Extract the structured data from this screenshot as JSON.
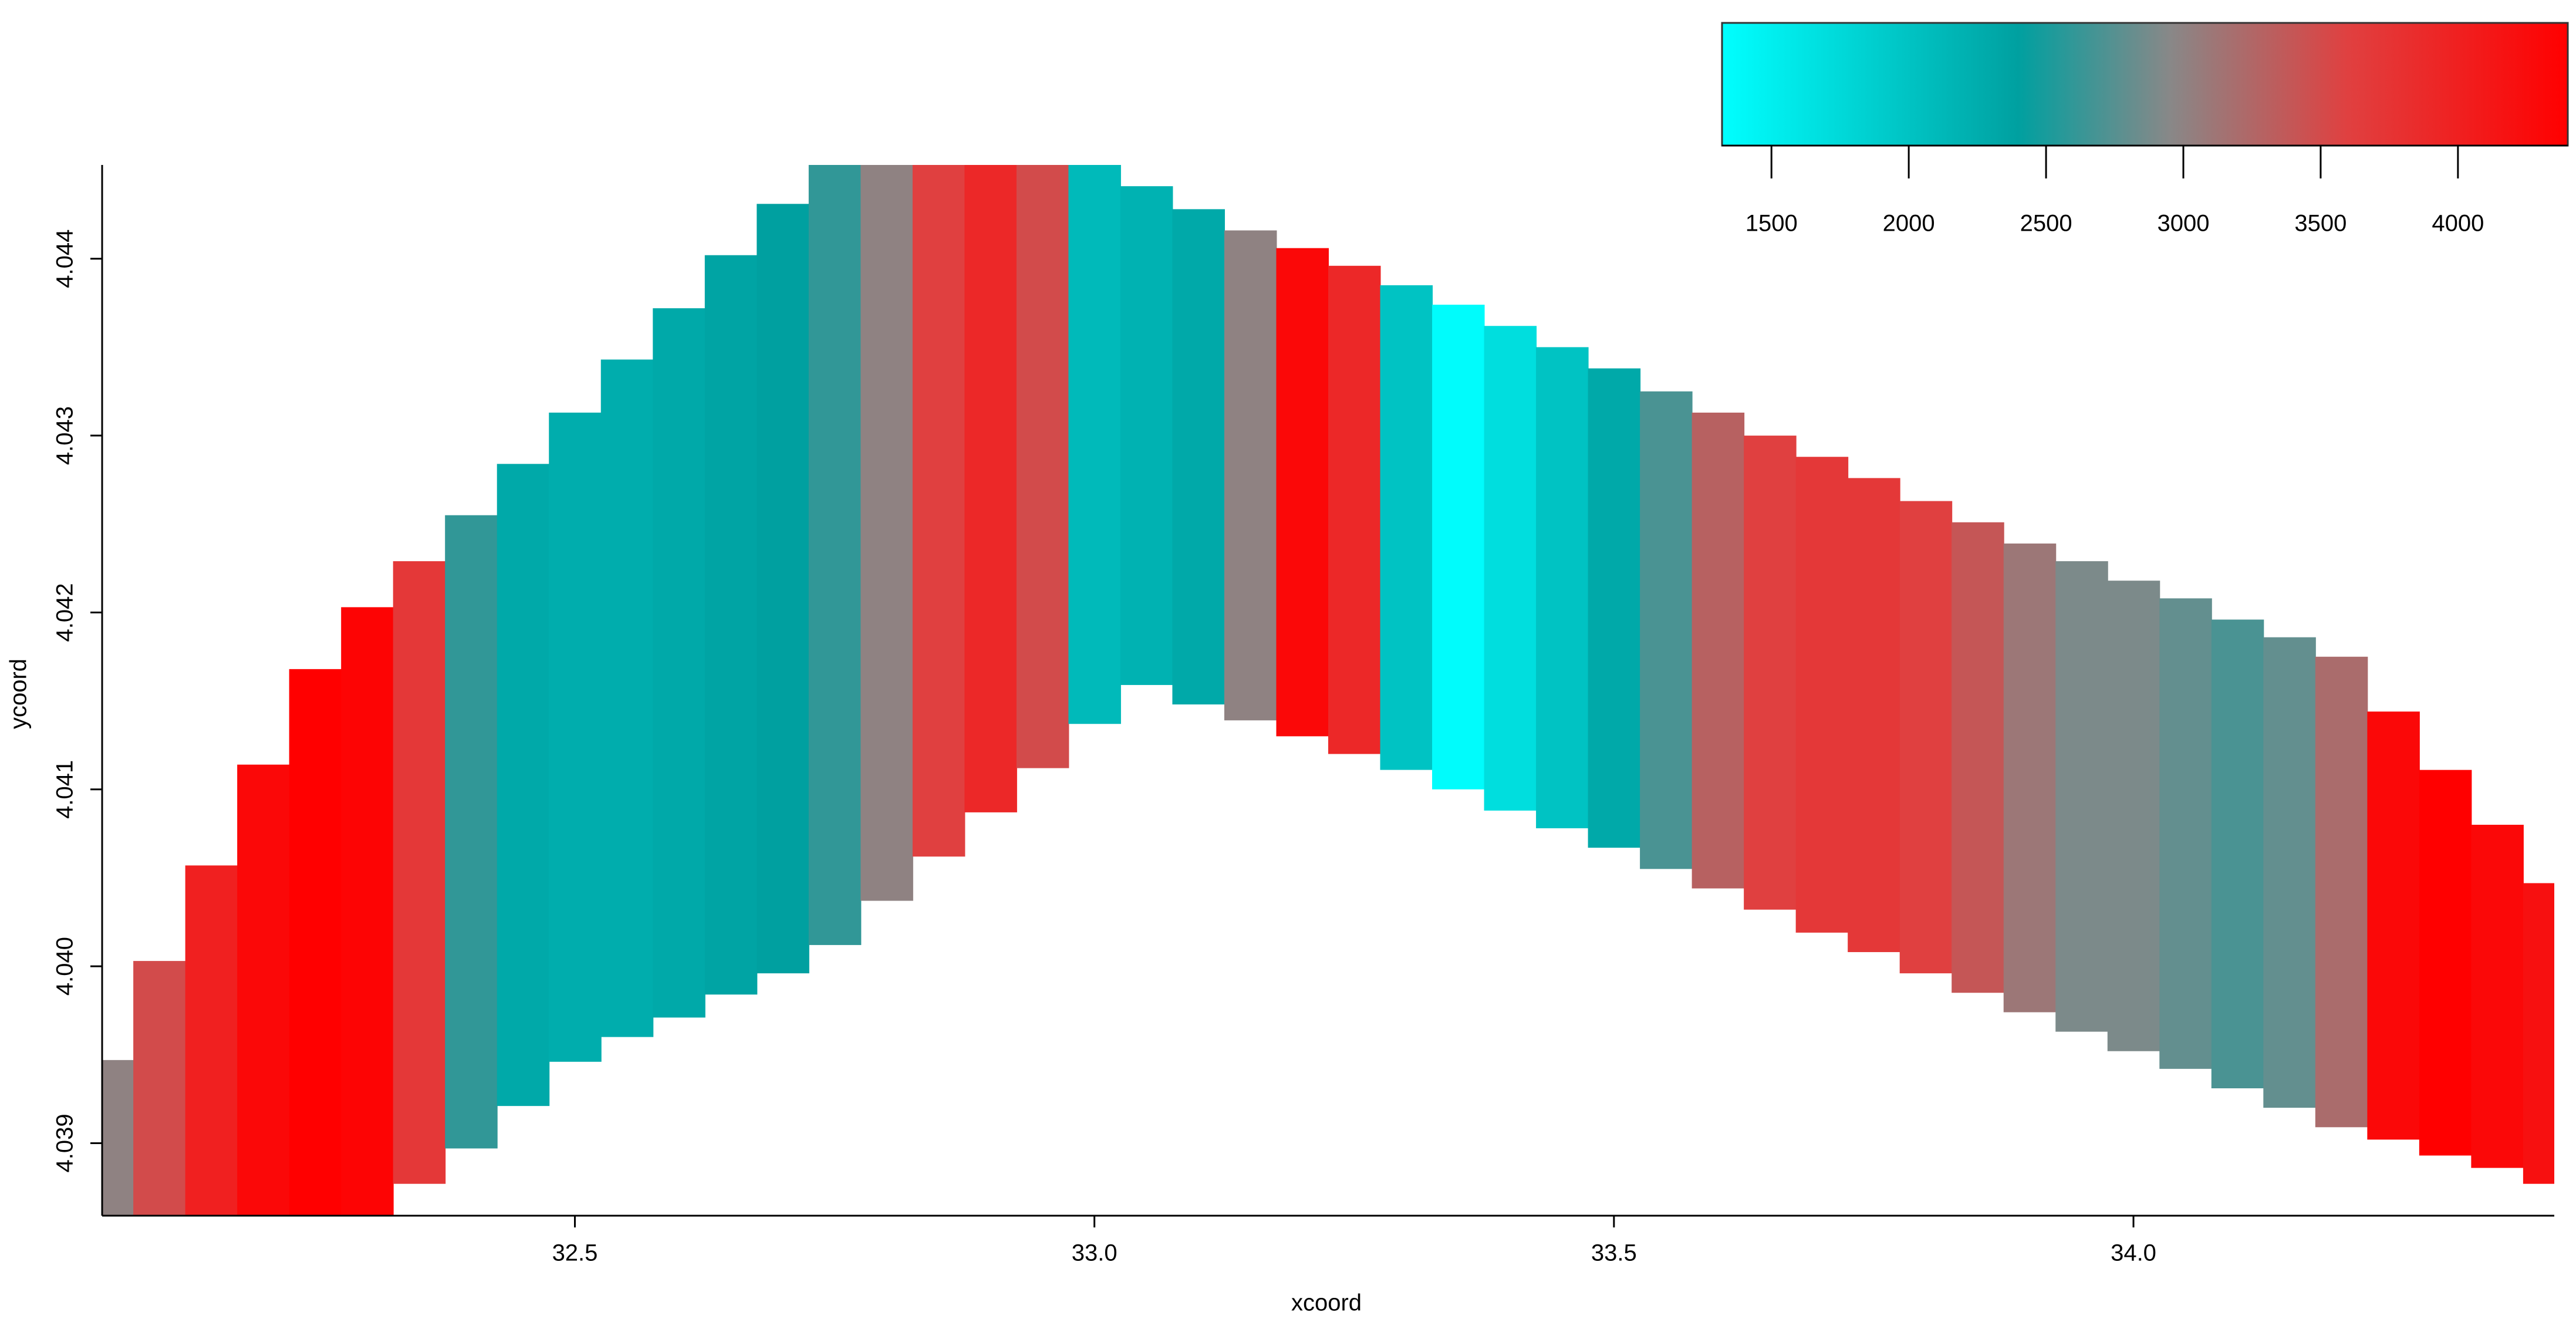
{
  "chart_data": {
    "type": "heatmap",
    "xlabel": "xcoord",
    "ylabel": "ycoord",
    "x": [
      32.05,
      32.1,
      32.15,
      32.2,
      32.25,
      32.3,
      32.35,
      32.4,
      32.45,
      32.5,
      32.55,
      32.6,
      32.65,
      32.7,
      32.75,
      32.8,
      32.85,
      32.9,
      32.95,
      33.0,
      33.05,
      33.1,
      33.15,
      33.2,
      33.25,
      33.3,
      33.35,
      33.4,
      33.45,
      33.5,
      33.55,
      33.6,
      33.65,
      33.7,
      33.75,
      33.8,
      33.85,
      33.9,
      33.95,
      34.0,
      34.05,
      34.1,
      34.15,
      34.2,
      34.25,
      34.3,
      34.35,
      34.4
    ],
    "values": [
      3000,
      3500,
      4000,
      4300,
      4400,
      4350,
      3700,
      2600,
      2300,
      2250,
      2250,
      2300,
      2350,
      2400,
      2600,
      3000,
      3600,
      3900,
      3500,
      2100,
      2200,
      2300,
      3000,
      4300,
      3900,
      2000,
      1350,
      1700,
      2000,
      2300,
      2700,
      3300,
      3600,
      3700,
      3700,
      3600,
      3400,
      3100,
      2900,
      2900,
      2800,
      2700,
      2800,
      3200,
      4300,
      4400,
      4300,
      4200
    ],
    "upper": [
      4.03945,
      4.04001,
      4.04055,
      4.04112,
      4.04166,
      4.04201,
      4.04227,
      4.04253,
      4.04282,
      4.04311,
      4.04341,
      4.0437,
      4.044,
      4.04429,
      4.04453,
      4.04453,
      4.04453,
      4.04453,
      4.04453,
      4.04452,
      4.04439,
      4.04426,
      4.04414,
      4.04404,
      4.04394,
      4.04383,
      4.04372,
      4.0436,
      4.04348,
      4.04336,
      4.04323,
      4.04311,
      4.04298,
      4.04286,
      4.04274,
      4.04261,
      4.04249,
      4.04237,
      4.04227,
      4.04216,
      4.04206,
      4.04194,
      4.04184,
      4.04173,
      4.04142,
      4.04109,
      4.04078,
      4.04045
    ],
    "lower": [
      4.03859,
      4.03859,
      4.03859,
      4.03859,
      4.03859,
      4.03859,
      4.03879,
      4.03899,
      4.03923,
      4.03948,
      4.03962,
      4.03973,
      4.03986,
      4.03998,
      4.04014,
      4.04039,
      4.04064,
      4.04089,
      4.04114,
      4.04139,
      4.04161,
      4.0415,
      4.04141,
      4.04132,
      4.04122,
      4.04113,
      4.04102,
      4.0409,
      4.0408,
      4.04069,
      4.04057,
      4.04046,
      4.04034,
      4.04021,
      4.0401,
      4.03998,
      4.03987,
      4.03976,
      4.03965,
      4.03954,
      4.03944,
      4.03933,
      4.03922,
      4.03911,
      4.03904,
      4.03895,
      4.03888,
      4.03879
    ],
    "xlim": [
      32.045,
      34.405
    ],
    "ylim": [
      4.03859,
      4.04453
    ],
    "xticks": [
      32.5,
      {
        "value": 33,
        "label": "33.0"
      },
      33.5,
      {
        "value": 34,
        "label": "34.0"
      }
    ],
    "yticks": [
      4.039,
      {
        "value": 4.04,
        "label": "4.040"
      },
      4.041,
      4.042,
      4.043,
      4.044
    ],
    "colorscale": [
      [
        1320,
        "#00ffff"
      ],
      [
        2400,
        "#00a0a0"
      ],
      [
        2950,
        "#888888"
      ],
      [
        3600,
        "#e04040"
      ],
      [
        4400,
        "#ff0000"
      ]
    ],
    "colorbar": {
      "lim": [
        1320,
        4400
      ],
      "ticks": [
        1500,
        2000,
        2500,
        3000,
        3500,
        4000
      ]
    }
  }
}
